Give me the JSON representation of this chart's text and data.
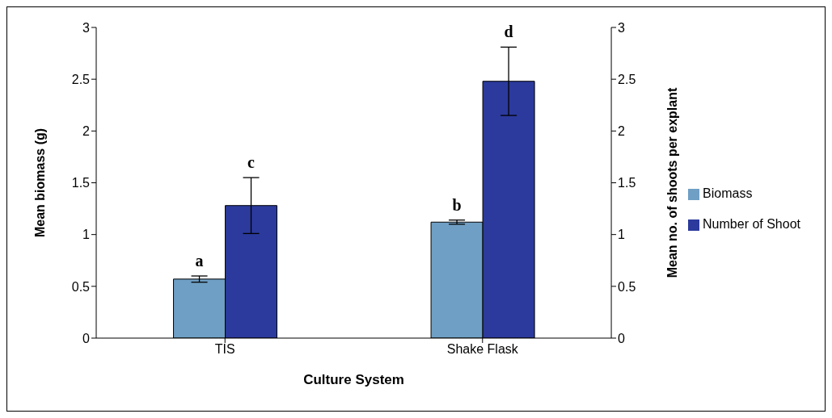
{
  "chart_data": {
    "type": "bar",
    "categories": [
      "TIS",
      "Shake Flask"
    ],
    "series": [
      {
        "name": "Biomass",
        "color": "#6f9fc4",
        "values": [
          0.57,
          1.12
        ],
        "errors": [
          0.03,
          0.02
        ],
        "value_labels": [
          "a",
          "b"
        ]
      },
      {
        "name": "Number of Shoot",
        "color": "#2b3a9c",
        "values": [
          1.28,
          2.48
        ],
        "errors": [
          [
            1.01,
            1.55
          ],
          [
            2.15,
            2.81
          ]
        ],
        "value_labels": [
          "c",
          "d"
        ],
        "axis": "y2"
      }
    ],
    "xlabel": "Culture System",
    "ylabel": "Mean biomass (g)",
    "y2label": "Mean no. of shoots per explant",
    "ylim": [
      0,
      3
    ],
    "yticks": [
      0,
      0.5,
      1,
      1.5,
      2,
      2.5,
      3
    ],
    "y2lim": [
      0,
      3
    ],
    "y2ticks": [
      0,
      0.5,
      1,
      1.5,
      2,
      2.5,
      3
    ],
    "legend": "right",
    "grid": false
  }
}
